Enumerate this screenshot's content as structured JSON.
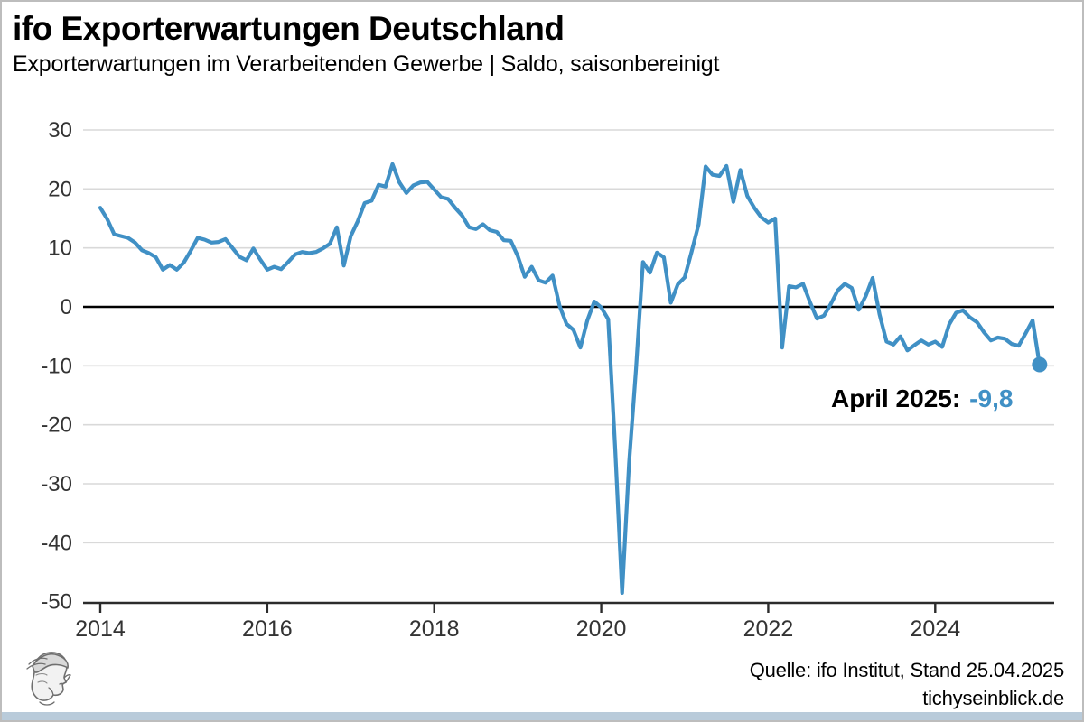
{
  "header": {
    "title": "ifo Exporterwartungen Deutschland",
    "subtitle": "Exporterwartungen im Verarbeitenden Gewerbe | Saldo, saisonbereinigt"
  },
  "annotation": {
    "label": "April 2025:",
    "value": "-9,8"
  },
  "source": {
    "line1": "Quelle: ifo Institut, Stand 25.04.2025",
    "line2": "tichyseinblick.de"
  },
  "colors": {
    "line": "#4090c5",
    "accent_text": "#4090c5",
    "grid": "#d9d9d9",
    "zero_line": "#000000",
    "axis": "#2b2b2b",
    "tick_text": "#333333",
    "bottom_bar": "#b9cbda"
  },
  "chart_data": {
    "type": "line",
    "title": "ifo Exporterwartungen Deutschland",
    "subtitle": "Exporterwartungen im Verarbeitenden Gewerbe | Saldo, saisonbereinigt",
    "frequency": "monthly",
    "start": "2014-01",
    "end": "2025-04",
    "ylim": [
      -50,
      30
    ],
    "yticks": [
      30,
      20,
      10,
      0,
      -10,
      -20,
      -30,
      -40,
      -50
    ],
    "xticks": [
      2014,
      2016,
      2018,
      2020,
      2022,
      2024
    ],
    "grid": "horizontal",
    "legend": "none",
    "last_point": {
      "label": "April 2025",
      "value": -9.8,
      "value_display": "-9,8"
    },
    "values": [
      16.8,
      14.9,
      12.3,
      12.0,
      11.7,
      10.9,
      9.6,
      9.1,
      8.4,
      6.3,
      7.1,
      6.3,
      7.5,
      9.5,
      11.7,
      11.4,
      10.9,
      11.0,
      11.5,
      10.0,
      8.5,
      7.9,
      9.9,
      8.0,
      6.3,
      6.8,
      6.4,
      7.6,
      8.9,
      9.3,
      9.1,
      9.3,
      9.9,
      10.7,
      13.5,
      7.0,
      12.0,
      14.5,
      17.6,
      18.0,
      20.7,
      20.4,
      24.2,
      21.1,
      19.3,
      20.6,
      21.1,
      21.2,
      19.9,
      18.6,
      18.3,
      16.8,
      15.5,
      13.5,
      13.2,
      14.0,
      13.0,
      12.7,
      11.3,
      11.2,
      8.6,
      5.1,
      6.8,
      4.5,
      4.1,
      5.3,
      0.2,
      -2.9,
      -3.9,
      -6.9,
      -2.3,
      0.9,
      -0.1,
      -2.1,
      -24.0,
      -48.5,
      -26.5,
      -10.5,
      7.6,
      5.8,
      9.2,
      8.4,
      0.7,
      3.8,
      5.0,
      9.4,
      14.0,
      23.8,
      22.4,
      22.2,
      23.9,
      17.8,
      23.2,
      18.8,
      16.8,
      15.2,
      14.3,
      15.0,
      -6.9,
      3.5,
      3.3,
      3.9,
      0.8,
      -2.0,
      -1.5,
      0.5,
      2.8,
      3.9,
      3.2,
      -0.5,
      1.8,
      4.9,
      -1.3,
      -5.9,
      -6.4,
      -5.0,
      -7.4,
      -6.5,
      -5.7,
      -6.4,
      -5.9,
      -6.8,
      -3.0,
      -1.0,
      -0.6,
      -1.8,
      -2.6,
      -4.3,
      -5.7,
      -5.2,
      -5.4,
      -6.3,
      -6.6,
      -4.5,
      -2.3,
      -9.8
    ]
  }
}
